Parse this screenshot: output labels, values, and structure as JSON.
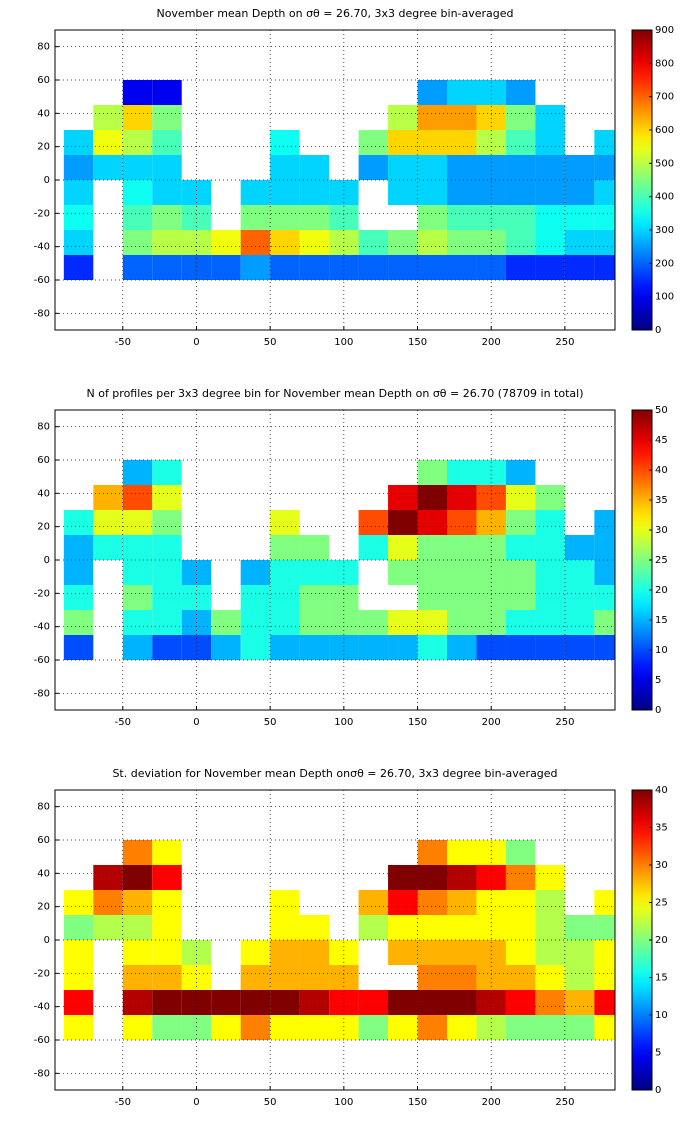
{
  "chart_data": [
    {
      "type": "heatmap",
      "title": "November mean Depth on σθ = 26.70, 3x3 degree bin-averaged",
      "colormap": "jet",
      "grid": true,
      "xlim": [
        -96,
        284
      ],
      "ylim": [
        -90,
        90
      ],
      "xticks": [
        -50,
        0,
        50,
        100,
        150,
        200,
        250
      ],
      "yticks": [
        -80,
        -60,
        -40,
        -20,
        0,
        20,
        40,
        60,
        80
      ],
      "clim": [
        0,
        900
      ],
      "cticks": [
        0,
        100,
        200,
        300,
        400,
        500,
        600,
        700,
        800,
        900
      ],
      "x": [
        -80,
        -60,
        -40,
        -20,
        0,
        20,
        40,
        60,
        80,
        100,
        120,
        140,
        160,
        180,
        200,
        220,
        240,
        260,
        280
      ],
      "y": [
        52.5,
        37.5,
        22.5,
        7.5,
        -7.5,
        -22.5,
        -37.5,
        -52.5
      ],
      "z": [
        [
          null,
          null,
          100,
          100,
          null,
          null,
          null,
          null,
          null,
          null,
          null,
          null,
          250,
          300,
          300,
          250,
          null,
          null,
          null
        ],
        [
          null,
          500,
          600,
          450,
          null,
          null,
          null,
          null,
          null,
          null,
          null,
          500,
          650,
          650,
          600,
          450,
          300,
          null,
          null
        ],
        [
          300,
          550,
          500,
          400,
          null,
          null,
          null,
          350,
          null,
          null,
          450,
          600,
          600,
          600,
          500,
          400,
          300,
          null,
          300
        ],
        [
          250,
          300,
          300,
          300,
          null,
          null,
          null,
          300,
          300,
          null,
          250,
          300,
          300,
          250,
          250,
          250,
          250,
          250,
          250
        ],
        [
          300,
          null,
          350,
          300,
          300,
          null,
          300,
          300,
          300,
          300,
          null,
          300,
          300,
          250,
          250,
          250,
          250,
          250,
          300
        ],
        [
          350,
          null,
          400,
          450,
          400,
          null,
          450,
          450,
          450,
          400,
          null,
          null,
          450,
          400,
          400,
          400,
          350,
          350,
          350
        ],
        [
          300,
          null,
          450,
          500,
          500,
          550,
          700,
          600,
          550,
          500,
          400,
          450,
          500,
          450,
          450,
          400,
          350,
          300,
          300
        ],
        [
          150,
          null,
          200,
          200,
          200,
          200,
          250,
          200,
          200,
          200,
          200,
          200,
          200,
          200,
          200,
          150,
          150,
          150,
          150
        ]
      ]
    },
    {
      "type": "heatmap",
      "title": "N of profiles per 3x3 degree bin for November mean Depth on σθ = 26.70 (78709 in total)",
      "colormap": "jet",
      "grid": true,
      "xlim": [
        -96,
        284
      ],
      "ylim": [
        -90,
        90
      ],
      "xticks": [
        -50,
        0,
        50,
        100,
        150,
        200,
        250
      ],
      "yticks": [
        -80,
        -60,
        -40,
        -20,
        0,
        20,
        40,
        60,
        80
      ],
      "clim": [
        0,
        50
      ],
      "cticks": [
        0,
        5,
        10,
        15,
        20,
        25,
        30,
        35,
        40,
        45,
        50
      ],
      "x": [
        -80,
        -60,
        -40,
        -20,
        0,
        20,
        40,
        60,
        80,
        100,
        120,
        140,
        160,
        180,
        200,
        220,
        240,
        260,
        280
      ],
      "y": [
        52.5,
        37.5,
        22.5,
        7.5,
        -7.5,
        -22.5,
        -37.5,
        -52.5
      ],
      "z": [
        [
          null,
          null,
          15,
          20,
          null,
          null,
          null,
          null,
          null,
          null,
          null,
          null,
          25,
          20,
          20,
          15,
          null,
          null,
          null
        ],
        [
          null,
          35,
          40,
          30,
          null,
          null,
          null,
          null,
          null,
          null,
          null,
          45,
          50,
          45,
          40,
          30,
          25,
          null,
          null
        ],
        [
          20,
          30,
          30,
          25,
          null,
          null,
          null,
          30,
          null,
          null,
          40,
          50,
          45,
          40,
          35,
          25,
          20,
          null,
          15
        ],
        [
          15,
          20,
          20,
          20,
          null,
          null,
          null,
          25,
          25,
          null,
          20,
          30,
          25,
          25,
          25,
          20,
          20,
          15,
          15
        ],
        [
          15,
          null,
          20,
          20,
          15,
          null,
          15,
          20,
          20,
          20,
          null,
          25,
          25,
          25,
          25,
          25,
          20,
          20,
          15
        ],
        [
          20,
          null,
          25,
          20,
          20,
          null,
          20,
          20,
          25,
          25,
          null,
          null,
          25,
          25,
          25,
          25,
          20,
          20,
          20
        ],
        [
          25,
          null,
          20,
          20,
          15,
          25,
          20,
          20,
          25,
          25,
          25,
          30,
          30,
          25,
          25,
          20,
          20,
          20,
          25
        ],
        [
          10,
          null,
          15,
          10,
          10,
          15,
          20,
          15,
          15,
          15,
          15,
          15,
          20,
          15,
          10,
          10,
          10,
          10,
          10
        ]
      ]
    },
    {
      "type": "heatmap",
      "title": "St. deviation for November mean Depth onσθ = 26.70, 3x3 degree bin-averaged",
      "colormap": "jet",
      "grid": true,
      "xlim": [
        -96,
        284
      ],
      "ylim": [
        -90,
        90
      ],
      "xticks": [
        -50,
        0,
        50,
        100,
        150,
        200,
        250
      ],
      "yticks": [
        -80,
        -60,
        -40,
        -20,
        0,
        20,
        40,
        60,
        80
      ],
      "clim": [
        0,
        40
      ],
      "cticks": [
        0,
        5,
        10,
        15,
        20,
        25,
        30,
        35,
        40
      ],
      "x": [
        -80,
        -60,
        -40,
        -20,
        0,
        20,
        40,
        60,
        80,
        100,
        120,
        140,
        160,
        180,
        200,
        220,
        240,
        260,
        280
      ],
      "y": [
        52.5,
        37.5,
        22.5,
        7.5,
        -7.5,
        -22.5,
        -37.5,
        -52.5
      ],
      "z": [
        [
          null,
          null,
          30,
          25,
          null,
          null,
          null,
          null,
          null,
          null,
          null,
          null,
          30,
          25,
          25,
          20,
          null,
          null,
          null
        ],
        [
          null,
          38,
          40,
          35,
          null,
          null,
          null,
          null,
          null,
          null,
          null,
          40,
          40,
          38,
          35,
          30,
          25,
          null,
          null
        ],
        [
          25,
          30,
          28,
          25,
          null,
          null,
          null,
          25,
          null,
          null,
          28,
          35,
          30,
          28,
          25,
          25,
          22,
          null,
          25
        ],
        [
          20,
          22,
          22,
          25,
          null,
          null,
          null,
          25,
          25,
          null,
          22,
          25,
          25,
          25,
          25,
          25,
          22,
          20,
          20
        ],
        [
          25,
          null,
          25,
          25,
          22,
          null,
          25,
          28,
          28,
          25,
          null,
          28,
          28,
          28,
          28,
          25,
          22,
          22,
          25
        ],
        [
          25,
          null,
          28,
          28,
          25,
          null,
          28,
          28,
          28,
          28,
          null,
          null,
          30,
          30,
          28,
          28,
          25,
          22,
          25
        ],
        [
          35,
          null,
          38,
          40,
          40,
          40,
          40,
          40,
          38,
          35,
          35,
          40,
          40,
          40,
          38,
          35,
          30,
          28,
          35
        ],
        [
          25,
          null,
          25,
          20,
          20,
          25,
          30,
          25,
          25,
          25,
          20,
          25,
          30,
          25,
          22,
          20,
          20,
          20,
          25
        ]
      ]
    }
  ]
}
